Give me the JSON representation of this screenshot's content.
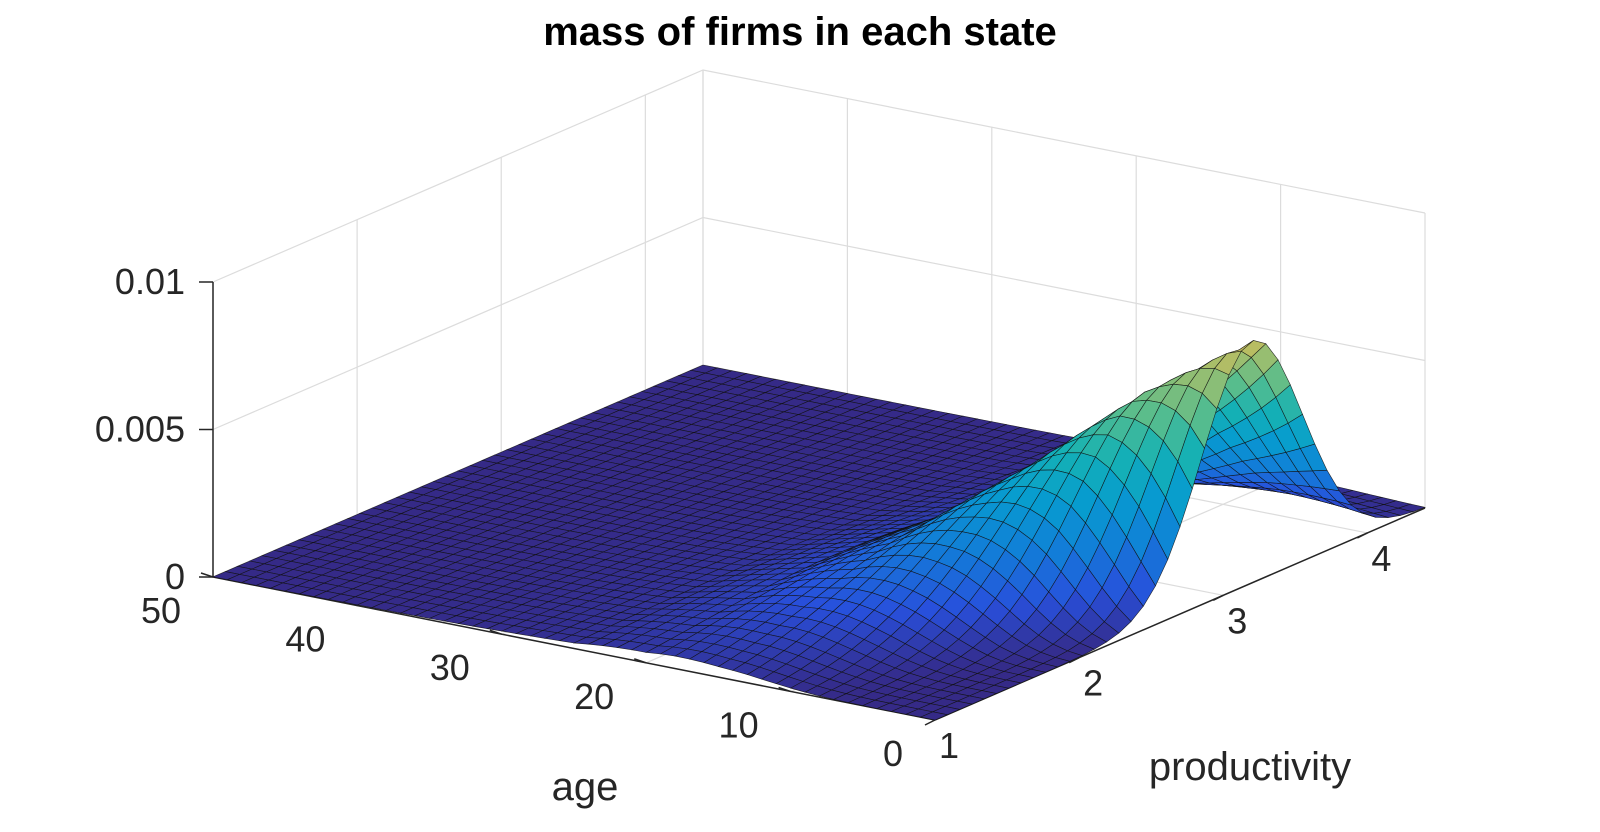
{
  "chart_data": {
    "type": "surface",
    "title": "mass of firms in each state",
    "xlabel": "productivity",
    "ylabel": "age",
    "zlabel": "",
    "x_range": [
      1,
      4.4
    ],
    "y_range": [
      0,
      50
    ],
    "z_range": [
      0,
      0.01
    ],
    "x_ticks": [
      1,
      2,
      3,
      4
    ],
    "y_ticks": [
      0,
      10,
      20,
      30,
      40,
      50
    ],
    "z_ticks": [
      "0",
      "0.005",
      "0.01"
    ],
    "grid": true,
    "colormap": "parula",
    "surface": {
      "description_of_shape": "near-zero everywhere except a ridge near low age; peak at productivity ~3.2, age ~0",
      "peak_value": 0.0082,
      "peak_productivity": 3.2,
      "peak_age": 0,
      "ridge_growth_ages": [
        0,
        5,
        10,
        15,
        20,
        25
      ],
      "ridge_sample_heights": [
        0.0082,
        0.0065,
        0.0042,
        0.0022,
        0.0009,
        0.0003
      ]
    }
  }
}
